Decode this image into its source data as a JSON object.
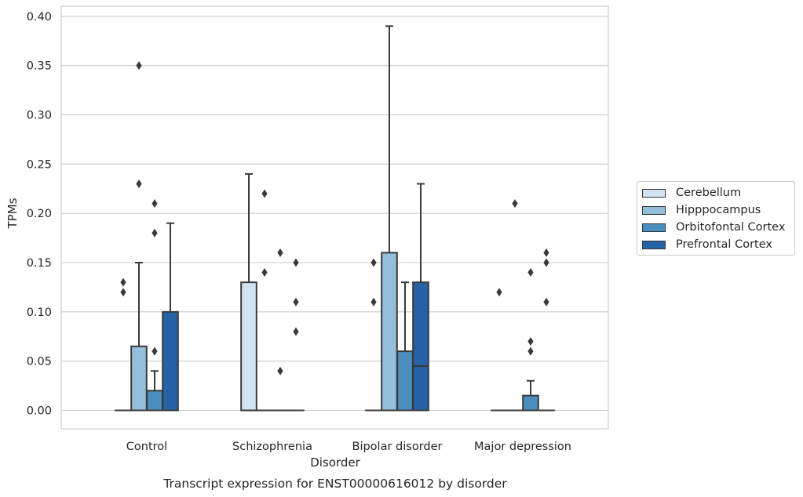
{
  "chart_data": {
    "type": "box",
    "title": "Transcript expression for ENST00000616012 by disorder",
    "xlabel": "Disorder",
    "ylabel": "TPMs",
    "ylim": [
      -0.019,
      0.41
    ],
    "yticks": [
      "0.00",
      "0.05",
      "0.10",
      "0.15",
      "0.20",
      "0.25",
      "0.30",
      "0.35",
      "0.40"
    ],
    "ytick_values": [
      0,
      0.05,
      0.1,
      0.15,
      0.2,
      0.25,
      0.3,
      0.35,
      0.4
    ],
    "grid": "horizontal",
    "legend_position": "right",
    "categories": [
      "Control",
      "Schizophrenia",
      "Bipolar disorder",
      "Major depression"
    ],
    "series": [
      {
        "name": "Cerebellum",
        "color": "#d3e3f3",
        "boxes": [
          {
            "q1": 0,
            "median": 0,
            "q3": 0,
            "whisker_low": 0,
            "whisker_high": 0,
            "outliers": [
              0.13,
              0.12
            ]
          },
          {
            "q1": 0,
            "median": 0,
            "q3": 0.13,
            "whisker_low": 0,
            "whisker_high": 0.24,
            "outliers": []
          },
          {
            "q1": 0,
            "median": 0,
            "q3": 0,
            "whisker_low": 0,
            "whisker_high": 0,
            "outliers": [
              0.15,
              0.11
            ]
          },
          {
            "q1": 0,
            "median": 0,
            "q3": 0,
            "whisker_low": 0,
            "whisker_high": 0,
            "outliers": [
              0.12
            ]
          }
        ]
      },
      {
        "name": "Hipppocampus",
        "color": "#94bfdb",
        "boxes": [
          {
            "q1": 0,
            "median": 0,
            "q3": 0.065,
            "whisker_low": 0,
            "whisker_high": 0.15,
            "outliers": [
              0.35,
              0.23
            ]
          },
          {
            "q1": 0,
            "median": 0,
            "q3": 0,
            "whisker_low": 0,
            "whisker_high": 0,
            "outliers": [
              0.22,
              0.14
            ]
          },
          {
            "q1": 0,
            "median": 0,
            "q3": 0.16,
            "whisker_low": 0,
            "whisker_high": 0.39,
            "outliers": []
          },
          {
            "q1": 0,
            "median": 0,
            "q3": 0,
            "whisker_low": 0,
            "whisker_high": 0,
            "outliers": [
              0.21
            ]
          }
        ]
      },
      {
        "name": "Orbitofontal Cortex",
        "color": "#4b8fc1",
        "boxes": [
          {
            "q1": 0,
            "median": 0,
            "q3": 0.02,
            "whisker_low": 0,
            "whisker_high": 0.04,
            "outliers": [
              0.21,
              0.18,
              0.06
            ]
          },
          {
            "q1": 0,
            "median": 0,
            "q3": 0,
            "whisker_low": 0,
            "whisker_high": 0,
            "outliers": [
              0.16,
              0.04
            ]
          },
          {
            "q1": 0,
            "median": 0,
            "q3": 0.06,
            "whisker_low": 0,
            "whisker_high": 0.13,
            "outliers": []
          },
          {
            "q1": 0,
            "median": 0,
            "q3": 0.015,
            "whisker_low": 0,
            "whisker_high": 0.03,
            "outliers": [
              0.14,
              0.07,
              0.06
            ]
          }
        ]
      },
      {
        "name": "Prefrontal Cortex",
        "color": "#2563a6",
        "boxes": [
          {
            "q1": 0,
            "median": 0,
            "q3": 0.1,
            "whisker_low": 0,
            "whisker_high": 0.19,
            "outliers": []
          },
          {
            "q1": 0,
            "median": 0,
            "q3": 0,
            "whisker_low": 0,
            "whisker_high": 0,
            "outliers": [
              0.15,
              0.11,
              0.08
            ]
          },
          {
            "q1": 0,
            "median": 0.045,
            "q3": 0.13,
            "whisker_low": 0,
            "whisker_high": 0.23,
            "outliers": []
          },
          {
            "q1": 0,
            "median": 0,
            "q3": 0,
            "whisker_low": 0,
            "whisker_high": 0,
            "outliers": [
              0.16,
              0.15,
              0.11
            ]
          }
        ]
      }
    ]
  }
}
